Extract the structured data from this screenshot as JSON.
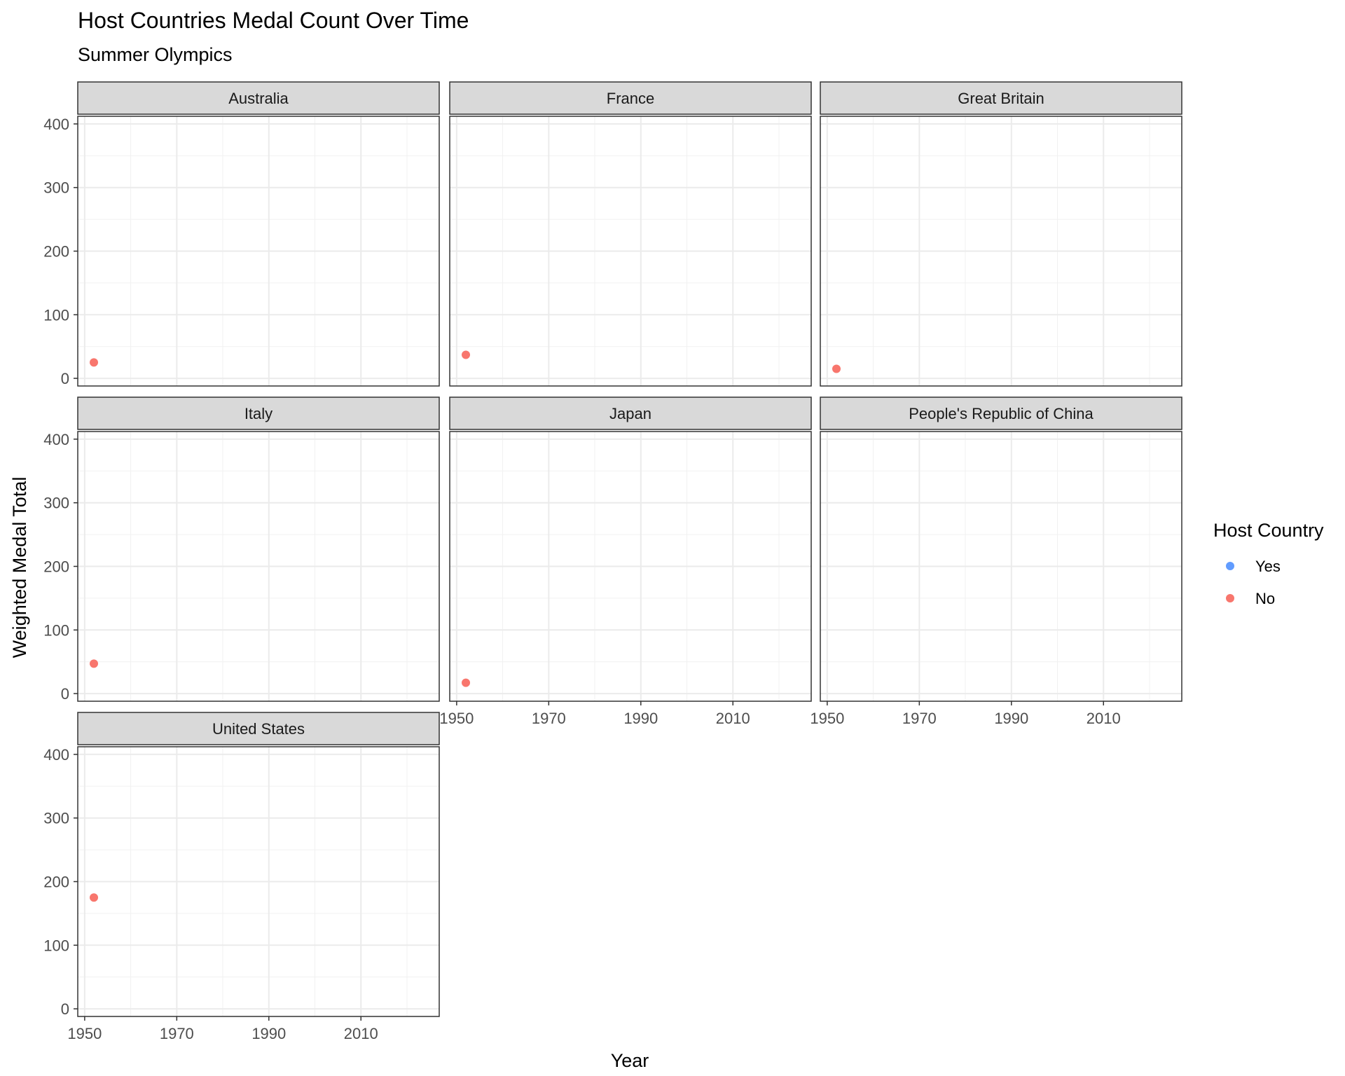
{
  "chart_data": {
    "type": "scatter",
    "title": "Host Countries Medal Count Over Time",
    "subtitle": "Summer Olympics",
    "xlabel": "Year",
    "ylabel": "Weighted Medal Total",
    "xlim": [
      1948.5,
      2027
    ],
    "ylim": [
      -12,
      412
    ],
    "x_ticks": [
      1950,
      1970,
      1990,
      2010
    ],
    "y_ticks": [
      0,
      100,
      200,
      300,
      400
    ],
    "grid": true,
    "facet_ncol": 3,
    "legend": {
      "title": "Host Country",
      "position": "right",
      "entries": [
        {
          "label": "Yes",
          "color": "#619CFF"
        },
        {
          "label": "No",
          "color": "#F8766D"
        }
      ]
    },
    "facets": [
      {
        "name": "Australia",
        "points": [
          {
            "x": 1952,
            "y": 25,
            "host": "No"
          }
        ]
      },
      {
        "name": "France",
        "points": [
          {
            "x": 1952,
            "y": 37,
            "host": "No"
          }
        ]
      },
      {
        "name": "Great Britain",
        "points": [
          {
            "x": 1952,
            "y": 15,
            "host": "No"
          }
        ]
      },
      {
        "name": "Italy",
        "points": [
          {
            "x": 1952,
            "y": 47,
            "host": "No"
          }
        ]
      },
      {
        "name": "Japan",
        "points": [
          {
            "x": 1952,
            "y": 17,
            "host": "No"
          }
        ]
      },
      {
        "name": "People's Republic of China",
        "points": []
      },
      {
        "name": "United States",
        "points": [
          {
            "x": 1952,
            "y": 175,
            "host": "No"
          }
        ]
      }
    ]
  }
}
